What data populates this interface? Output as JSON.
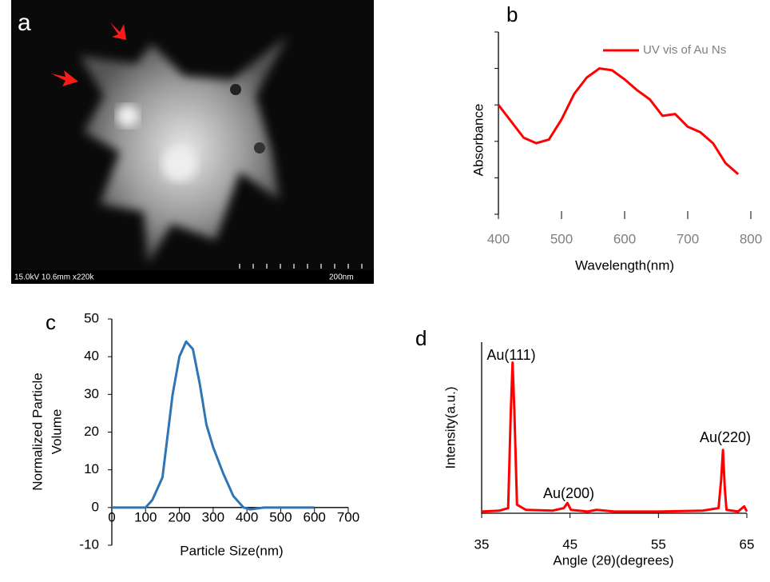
{
  "image_panel": {
    "label": "a",
    "info": "15.0kV 10.6mm x220k",
    "scale": "200nm"
  },
  "chart_data": [
    {
      "type": "line",
      "label": "b",
      "xlabel": "Wavelength(nm)",
      "ylabel": "Absorbance",
      "xlim": [
        400,
        800
      ],
      "xticks": [
        400,
        500,
        600,
        700,
        800
      ],
      "ylim": [
        0,
        1
      ],
      "yticks": [
        0,
        0.2,
        0.4,
        0.6,
        0.8,
        1
      ],
      "ytick_labels": false,
      "legend": "top-right",
      "x": [
        400,
        440,
        460,
        480,
        500,
        520,
        540,
        560,
        580,
        600,
        620,
        640,
        660,
        680,
        700,
        720,
        740,
        760,
        780
      ],
      "series": [
        {
          "name": "UV vis of Au Ns",
          "color": "#ff0000",
          "values": [
            0.6,
            0.42,
            0.39,
            0.41,
            0.52,
            0.66,
            0.75,
            0.8,
            0.79,
            0.74,
            0.68,
            0.63,
            0.54,
            0.55,
            0.48,
            0.45,
            0.39,
            0.28,
            0.22
          ]
        }
      ]
    },
    {
      "type": "line",
      "label": "c",
      "xlabel": "Particle Size(nm)",
      "ylabel": [
        "Normalized Particle",
        "Volume"
      ],
      "xlim": [
        0,
        700
      ],
      "xticks": [
        0,
        100,
        200,
        300,
        400,
        500,
        600,
        700
      ],
      "ylim": [
        -10,
        50
      ],
      "yticks": [
        -10,
        0,
        10,
        20,
        30,
        40,
        50
      ],
      "ytick_labels": true,
      "x": [
        0,
        100,
        120,
        150,
        180,
        200,
        220,
        240,
        260,
        280,
        300,
        330,
        360,
        390,
        410,
        450,
        600
      ],
      "series": [
        {
          "color": "#2e75b6",
          "values": [
            0,
            0,
            2,
            8,
            30,
            40,
            44,
            42,
            33,
            22,
            16,
            9,
            3,
            0,
            -0.5,
            0,
            0
          ]
        }
      ]
    },
    {
      "type": "line",
      "label": "d",
      "xlabel": "Angle (2θ)(degrees)",
      "ylabel": "Intensity(a.u.)",
      "xlim": [
        35,
        65
      ],
      "xticks": [
        35,
        45,
        55,
        65
      ],
      "ylim": [
        0,
        100
      ],
      "ytick_labels": false,
      "annotations": [
        "Au(111)",
        "Au(200)",
        "Au(220)"
      ],
      "x": [
        35,
        37,
        38,
        38.3,
        38.5,
        38.7,
        39,
        40,
        43,
        44.3,
        44.7,
        45.1,
        47,
        48,
        50,
        55,
        60,
        61.8,
        62.1,
        62.3,
        62.5,
        62.7,
        64,
        64.7,
        65
      ],
      "series": [
        {
          "color": "#ff0000",
          "values": [
            1,
            1.5,
            3,
            60,
            88,
            60,
            5,
            2,
            1.5,
            3,
            6,
            2,
            1,
            2,
            1,
            1,
            1.5,
            3,
            20,
            37,
            15,
            2,
            1,
            4,
            1
          ]
        }
      ]
    }
  ]
}
